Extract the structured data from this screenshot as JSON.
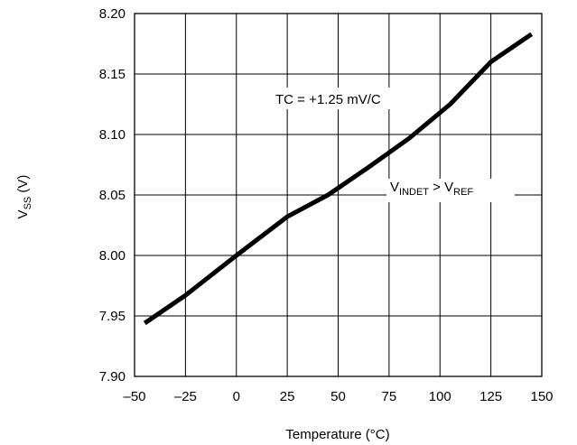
{
  "chart_data": {
    "type": "line",
    "title": "",
    "xlabel": "Temperature (°C)",
    "ylabel": {
      "main": "V",
      "sub": "SS",
      "rest": " (V)"
    },
    "xlim": [
      -50,
      150
    ],
    "ylim": [
      7.9,
      8.2
    ],
    "x_ticks": [
      -50,
      -25,
      0,
      25,
      50,
      75,
      100,
      125,
      150
    ],
    "x_tick_labels": [
      "–50",
      "–25",
      "0",
      "25",
      "50",
      "75",
      "100",
      "125",
      "150"
    ],
    "y_ticks": [
      7.9,
      7.95,
      8.0,
      8.05,
      8.1,
      8.15,
      8.2
    ],
    "y_tick_labels": [
      "7.90",
      "7.95",
      "8.00",
      "8.05",
      "8.10",
      "8.15",
      "8.20"
    ],
    "grid": true,
    "series": [
      {
        "x": [
          -45,
          -25,
          0,
          25,
          45,
          65,
          85,
          105,
          125,
          145
        ],
        "y": [
          7.944,
          7.967,
          8.0,
          8.032,
          8.05,
          8.073,
          8.097,
          8.125,
          8.16,
          8.183
        ]
      }
    ],
    "annotations": {
      "tc": "TC = +1.25 mV/C",
      "condition": {
        "v1": "V",
        "sub1": "INDET",
        "op": " > ",
        "v2": "V",
        "sub2": "REF"
      }
    }
  }
}
